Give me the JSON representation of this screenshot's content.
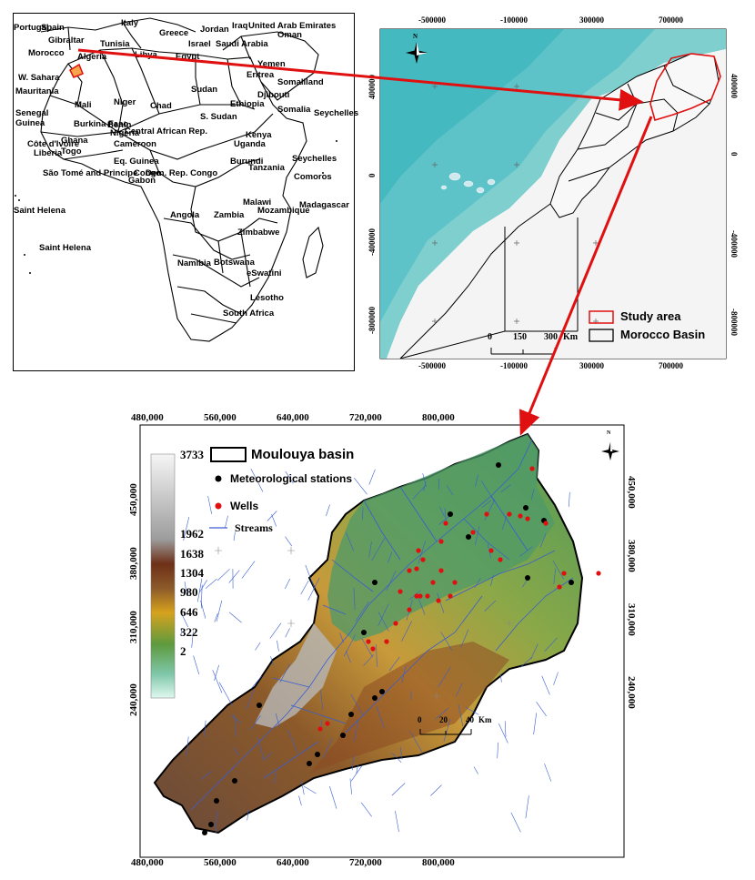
{
  "africa_map": {
    "country_labels": [
      "Portugal",
      "Spain",
      "Italy",
      "Greece",
      "Jordan",
      "Iraq",
      "United Arab Emirates",
      "Oman",
      "Gibraltar",
      "Tunisia",
      "Israel",
      "Saudi Arabia",
      "Morocco",
      "Algeria",
      "Libya",
      "Egypt",
      "Yemen",
      "Eritrea",
      "Somaliland",
      "W. Sahara",
      "Sudan",
      "Djibouti",
      "Mauritania",
      "Mali",
      "Niger",
      "Chad",
      "Ethiopia",
      "Somalia",
      "Senegal",
      "Burkina Faso",
      "Benin",
      "Nigeria",
      "Central African Rep.",
      "S. Sudan",
      "Kenya",
      "Seychelles",
      "Guinea",
      "Côte d'Ivoire",
      "Ghana",
      "Togo",
      "Liberia",
      "Cameroon",
      "Uganda",
      "Eq. Guinea",
      "Burundi",
      "São Tomé and Principe",
      "Congo",
      "Gabon",
      "Dem. Rep. Congo",
      "Tanzania",
      "Seychelles",
      "Comoros",
      "Saint Helena",
      "Malawi",
      "Madagascar",
      "Angola",
      "Zambia",
      "Mozambique",
      "Saint Helena",
      "Zimbabwe",
      "Namibia",
      "Botswana",
      "eSwatini",
      "Lesotho",
      "South Africa"
    ]
  },
  "morocco_map": {
    "top_ticks": [
      "-500000",
      "-100000",
      "300000",
      "700000"
    ],
    "bottom_ticks": [
      "-500000",
      "-100000",
      "300000",
      "700000"
    ],
    "left_ticks": [
      "400000",
      "0",
      "-400000",
      "-800000"
    ],
    "right_ticks": [
      "400000",
      "0",
      "-400000",
      "-800000"
    ],
    "scale_bar": {
      "labels": [
        "0",
        "150",
        "300"
      ],
      "unit": "Km"
    },
    "legend": {
      "study_area": "Study area",
      "morocco_basin": "Morocco Basin",
      "study_area_color": "#e02020"
    },
    "north_arrow": "N"
  },
  "moulouya_map": {
    "top_ticks": [
      "480,000",
      "560,000",
      "640,000",
      "720,000",
      "800,000"
    ],
    "bottom_ticks": [
      "480,000",
      "560,000",
      "640,000",
      "720,000",
      "800,000"
    ],
    "left_ticks": [
      "450,000",
      "380,000",
      "310,000",
      "240,000"
    ],
    "right_ticks": [
      "450,000",
      "380,000",
      "310,000",
      "240,000"
    ],
    "elevation_legend": {
      "labels": [
        "3733",
        "1962",
        "1638",
        "1304",
        "980",
        "646",
        "322",
        "2"
      ],
      "colors": [
        "#f6f6f6",
        "#9c9c9c",
        "#6e3018",
        "#8c5a2a",
        "#d6a21e",
        "#5e9a3e",
        "#7ec6a8",
        "#e0f8f0"
      ]
    },
    "legend": {
      "title": "Moulouya basin",
      "met_stations": "Meteorological stations",
      "wells": "Wells",
      "streams": "Streams",
      "well_color": "#e01010",
      "station_color": "#000000",
      "stream_color": "#3a5ed0"
    },
    "scale_bar": {
      "labels": [
        "0",
        "20",
        "40"
      ],
      "unit": "Km"
    },
    "north_arrow": "N"
  },
  "arrow_color": "#e01010"
}
